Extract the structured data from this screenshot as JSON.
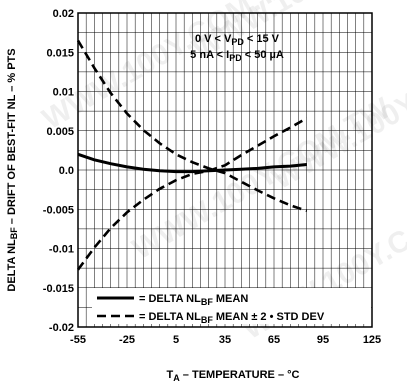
{
  "chart_data": {
    "type": "line",
    "x": [
      -55,
      -45,
      -35,
      -25,
      -15,
      -5,
      5,
      15,
      25,
      35,
      45,
      55,
      65,
      75,
      85
    ],
    "series": [
      {
        "name": "= DELTA NL BF MEAN",
        "name_parts": [
          "= DELTA NL",
          "BF",
          " MEAN"
        ],
        "style": "solid",
        "values": [
          0.002,
          0.0013,
          0.0008,
          0.0004,
          0.0001,
          -0.0001,
          -0.0002,
          -0.0002,
          -0.0001,
          0.0,
          0.0001,
          0.0002,
          0.0004,
          0.0005,
          0.0007
        ]
      },
      {
        "name": "= DELTA NL BF MEAN ± 2 • STD DEV (upper)",
        "name_parts": [
          "= DELTA NL",
          "BF",
          " MEAN ± 2 • STD DEV"
        ],
        "style": "dashed",
        "values": [
          0.0165,
          0.013,
          0.0098,
          0.0072,
          0.0051,
          0.0034,
          0.002,
          0.001,
          0.0002,
          -0.0004,
          -0.0015,
          -0.0026,
          -0.0036,
          -0.0045,
          -0.0052
        ]
      },
      {
        "name": "= DELTA NL BF MEAN ± 2 • STD DEV (lower)",
        "style": "dashed",
        "values": [
          -0.0127,
          -0.0099,
          -0.0074,
          -0.0054,
          -0.0038,
          -0.0024,
          -0.0013,
          -0.0005,
          -0.0001,
          0.0006,
          0.0019,
          0.0031,
          0.0043,
          0.0054,
          0.0066
        ]
      }
    ],
    "xlim": [
      -55,
      125
    ],
    "ylim": [
      -0.02,
      0.02
    ],
    "xticks": [
      "-55",
      "-25",
      "5",
      "35",
      "65",
      "95",
      "125"
    ],
    "yticks": [
      "-0.02",
      "-0.015",
      "-0.01",
      "-0.005",
      "0.0",
      "0.005",
      "0.01",
      "0.015",
      "0.02"
    ],
    "xlabel": {
      "main": "T",
      "sub": "A",
      "rest": " – TEMPERATURE – °C"
    },
    "ylabel": {
      "pre": "DELTA NL",
      "sub": "BF",
      "post": " – DRIFT OF BEST-FIT NL – % PTS"
    },
    "annotations": [
      {
        "pre": "0 V < V",
        "sub": "PD",
        "post": " < 15 V"
      },
      {
        "pre": "5 nA < I",
        "sub": "PD",
        "post": " < 50 µA"
      }
    ],
    "grid": true,
    "legend_position": "bottom-left",
    "watermark": "WWW.100Y.COM.TW"
  }
}
